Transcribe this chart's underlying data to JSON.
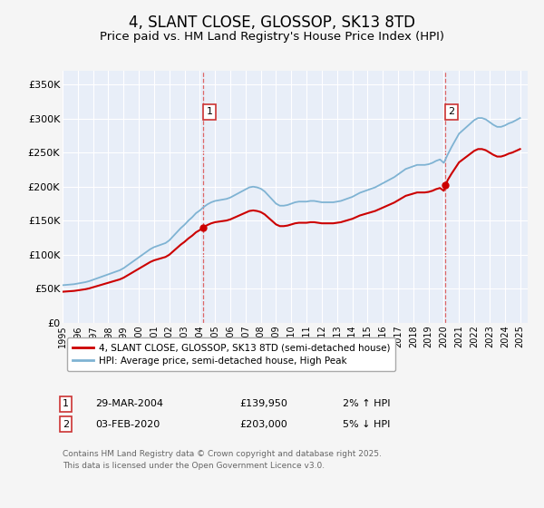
{
  "title": "4, SLANT CLOSE, GLOSSOP, SK13 8TD",
  "subtitle": "Price paid vs. HM Land Registry's House Price Index (HPI)",
  "title_fontsize": 12,
  "subtitle_fontsize": 9.5,
  "ylabel_ticks": [
    "£0",
    "£50K",
    "£100K",
    "£150K",
    "£200K",
    "£250K",
    "£300K",
    "£350K"
  ],
  "ytick_values": [
    0,
    50000,
    100000,
    150000,
    200000,
    250000,
    300000,
    350000
  ],
  "ylim": [
    0,
    370000
  ],
  "xlim_start": 1995.0,
  "xlim_end": 2025.5,
  "xtick_years": [
    1995,
    1996,
    1997,
    1998,
    1999,
    2000,
    2001,
    2002,
    2003,
    2004,
    2005,
    2006,
    2007,
    2008,
    2009,
    2010,
    2011,
    2012,
    2013,
    2014,
    2015,
    2016,
    2017,
    2018,
    2019,
    2020,
    2021,
    2022,
    2023,
    2024,
    2025
  ],
  "hpi_color": "#7fb3d3",
  "price_color": "#cc0000",
  "dashed_line_color": "#dd6666",
  "sale1_x": 2004.23,
  "sale1_y": 139950,
  "sale1_label": "1",
  "sale2_x": 2020.09,
  "sale2_y": 203000,
  "sale2_label": "2",
  "background_color": "#f5f5f5",
  "plot_bg_color": "#e8eef8",
  "legend_label_price": "4, SLANT CLOSE, GLOSSOP, SK13 8TD (semi-detached house)",
  "legend_label_hpi": "HPI: Average price, semi-detached house, High Peak",
  "table_row1": [
    "1",
    "29-MAR-2004",
    "£139,950",
    "2% ↑ HPI"
  ],
  "table_row2": [
    "2",
    "03-FEB-2020",
    "£203,000",
    "5% ↓ HPI"
  ],
  "footer": "Contains HM Land Registry data © Crown copyright and database right 2025.\nThis data is licensed under the Open Government Licence v3.0.",
  "hpi_data_x": [
    1995.0,
    1995.25,
    1995.5,
    1995.75,
    1996.0,
    1996.25,
    1996.5,
    1996.75,
    1997.0,
    1997.25,
    1997.5,
    1997.75,
    1998.0,
    1998.25,
    1998.5,
    1998.75,
    1999.0,
    1999.25,
    1999.5,
    1999.75,
    2000.0,
    2000.25,
    2000.5,
    2000.75,
    2001.0,
    2001.25,
    2001.5,
    2001.75,
    2002.0,
    2002.25,
    2002.5,
    2002.75,
    2003.0,
    2003.25,
    2003.5,
    2003.75,
    2004.0,
    2004.25,
    2004.5,
    2004.75,
    2005.0,
    2005.25,
    2005.5,
    2005.75,
    2006.0,
    2006.25,
    2006.5,
    2006.75,
    2007.0,
    2007.25,
    2007.5,
    2007.75,
    2008.0,
    2008.25,
    2008.5,
    2008.75,
    2009.0,
    2009.25,
    2009.5,
    2009.75,
    2010.0,
    2010.25,
    2010.5,
    2010.75,
    2011.0,
    2011.25,
    2011.5,
    2011.75,
    2012.0,
    2012.25,
    2012.5,
    2012.75,
    2013.0,
    2013.25,
    2013.5,
    2013.75,
    2014.0,
    2014.25,
    2014.5,
    2014.75,
    2015.0,
    2015.25,
    2015.5,
    2015.75,
    2016.0,
    2016.25,
    2016.5,
    2016.75,
    2017.0,
    2017.25,
    2017.5,
    2017.75,
    2018.0,
    2018.25,
    2018.5,
    2018.75,
    2019.0,
    2019.25,
    2019.5,
    2019.75,
    2020.0,
    2020.25,
    2020.5,
    2020.75,
    2021.0,
    2021.25,
    2021.5,
    2021.75,
    2022.0,
    2022.25,
    2022.5,
    2022.75,
    2023.0,
    2023.25,
    2023.5,
    2023.75,
    2024.0,
    2024.25,
    2024.5,
    2024.75,
    2025.0
  ],
  "hpi_data_y": [
    55000,
    55500,
    56000,
    56500,
    57500,
    58500,
    59500,
    61000,
    63000,
    65000,
    67000,
    69000,
    71000,
    73000,
    75000,
    77000,
    80000,
    84000,
    88000,
    92000,
    96000,
    100000,
    104000,
    108000,
    111000,
    113000,
    115000,
    117000,
    121000,
    127000,
    133000,
    139000,
    144000,
    150000,
    155000,
    161000,
    165000,
    170000,
    174000,
    177000,
    179000,
    180000,
    181000,
    182000,
    184000,
    187000,
    190000,
    193000,
    196000,
    199000,
    200000,
    199000,
    197000,
    193000,
    187000,
    181000,
    175000,
    172000,
    172000,
    173000,
    175000,
    177000,
    178000,
    178000,
    178000,
    179000,
    179000,
    178000,
    177000,
    177000,
    177000,
    177000,
    178000,
    179000,
    181000,
    183000,
    185000,
    188000,
    191000,
    193000,
    195000,
    197000,
    199000,
    202000,
    205000,
    208000,
    211000,
    214000,
    218000,
    222000,
    226000,
    228000,
    230000,
    232000,
    232000,
    232000,
    233000,
    235000,
    238000,
    240000,
    235000,
    247000,
    258000,
    268000,
    278000,
    283000,
    288000,
    293000,
    298000,
    301000,
    301000,
    299000,
    295000,
    291000,
    288000,
    288000,
    290000,
    293000,
    295000,
    298000,
    301000
  ],
  "price_data_x": [
    2004.23,
    2020.09
  ],
  "price_data_y": [
    139950,
    203000
  ]
}
